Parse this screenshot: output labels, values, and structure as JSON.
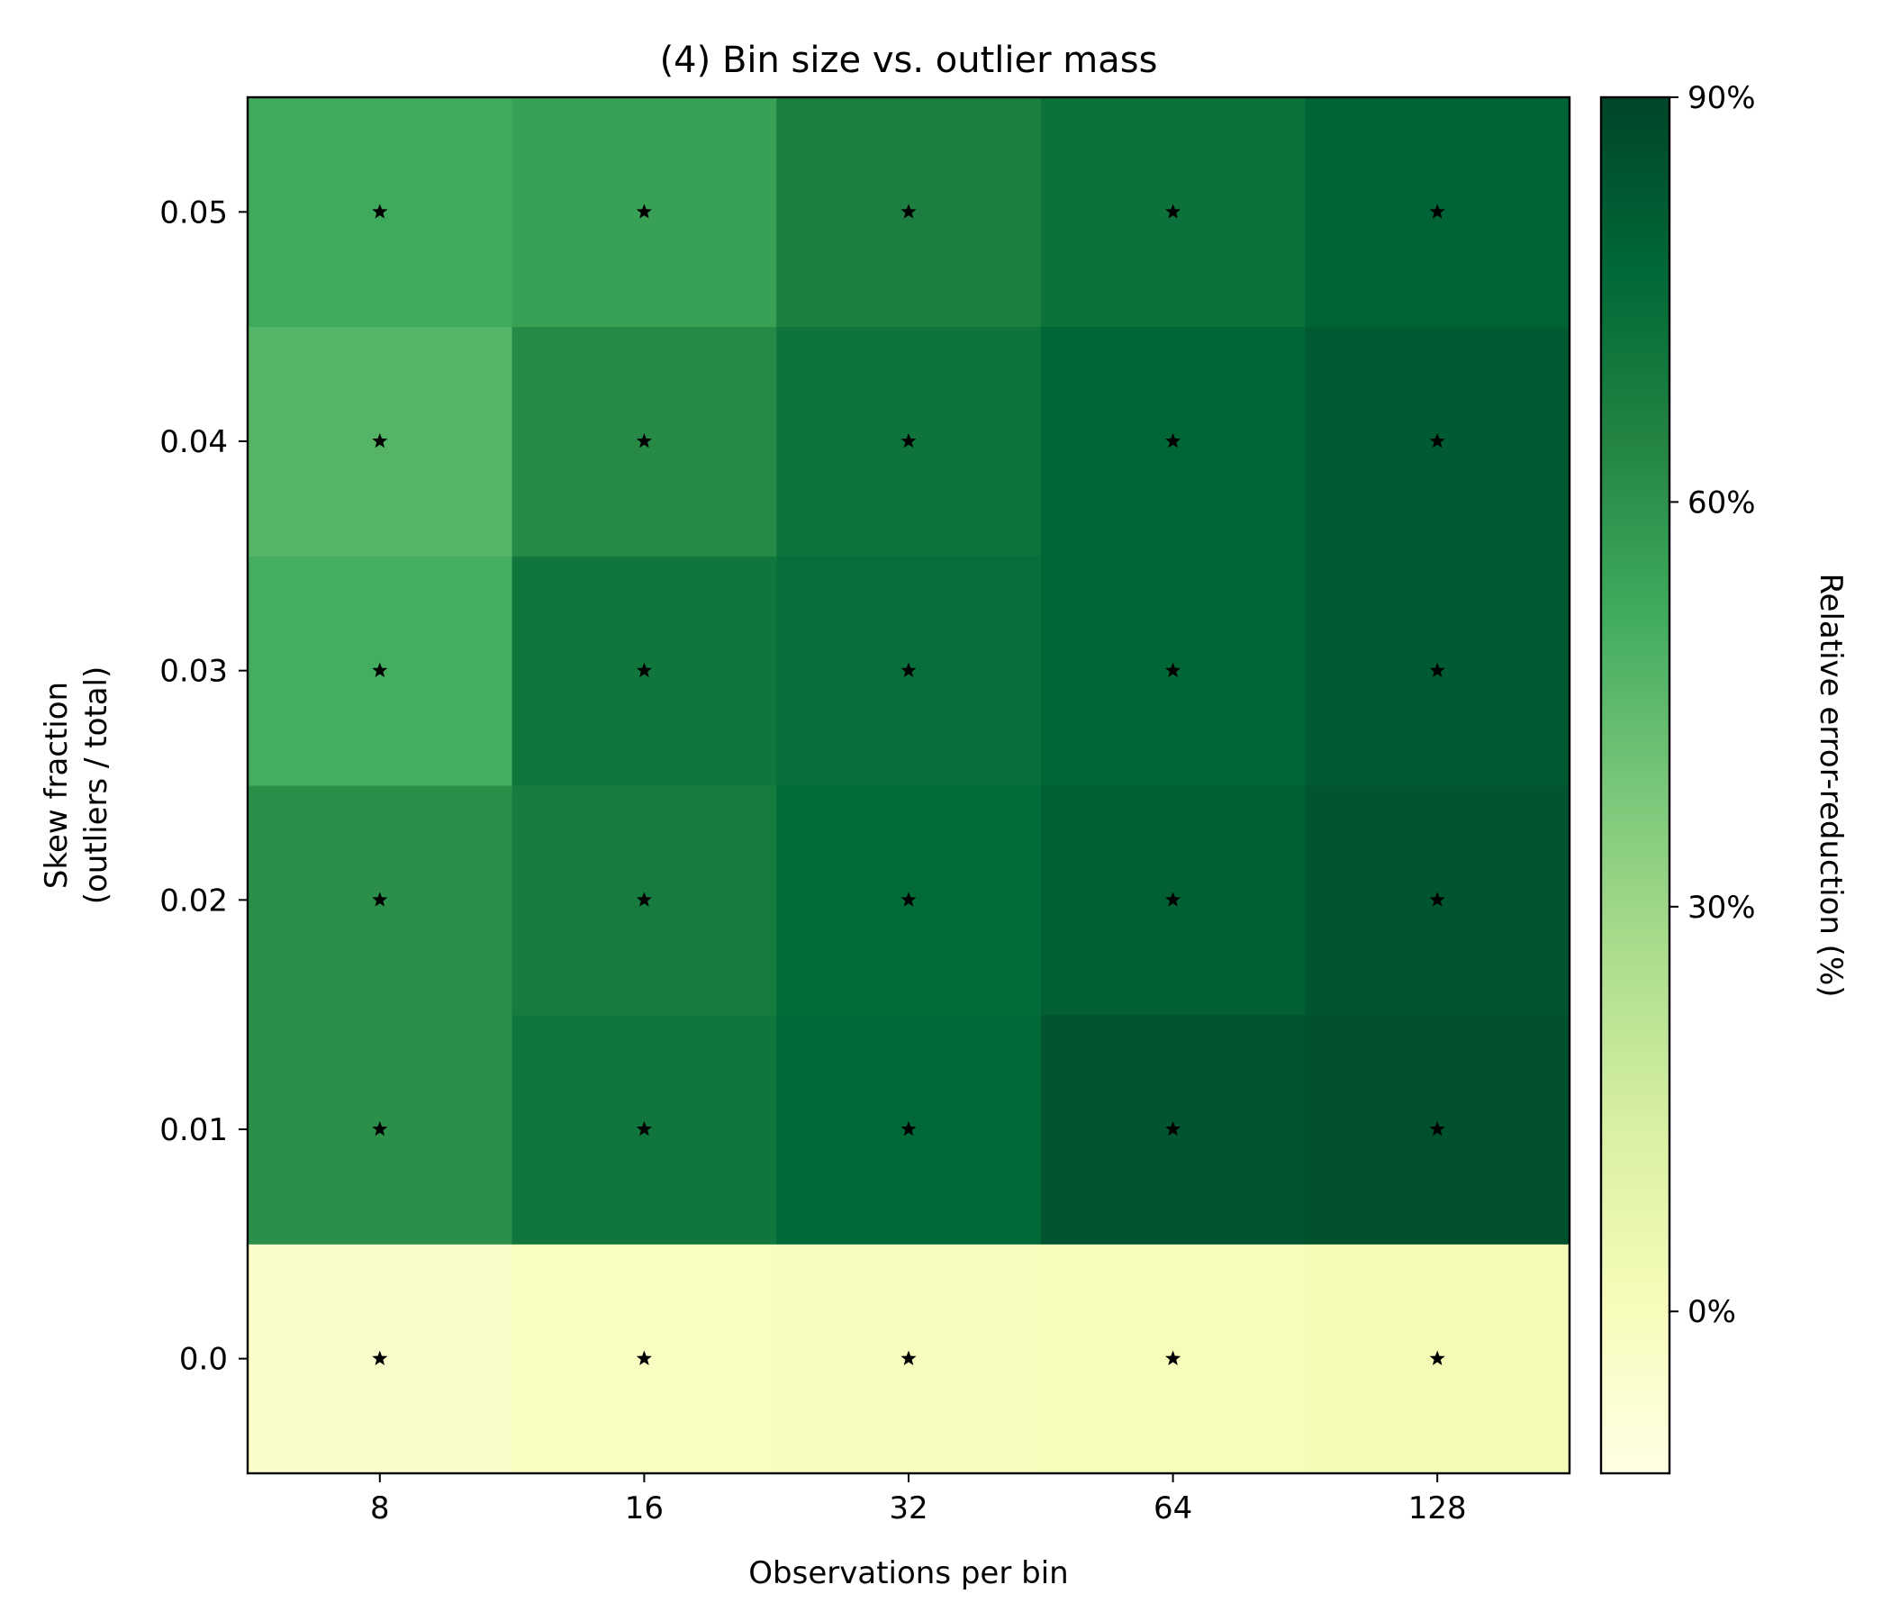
{
  "chart_data": {
    "type": "heatmap",
    "title": "(4)  Bin size vs. outlier mass",
    "xlabel": "Observations per bin",
    "ylabel": [
      "Skew fraction",
      "(outliers / total)"
    ],
    "x_categories": [
      "8",
      "16",
      "32",
      "64",
      "128"
    ],
    "y_categories": [
      "0.0",
      "0.01",
      "0.02",
      "0.03",
      "0.04",
      "0.05"
    ],
    "values": [
      [
        -4,
        -2,
        -1,
        1,
        2
      ],
      [
        61,
        71,
        77,
        84,
        86
      ],
      [
        61,
        69,
        76,
        80,
        84
      ],
      [
        51,
        71,
        74,
        78,
        82
      ],
      [
        47,
        63,
        72,
        78,
        82
      ],
      [
        52,
        55,
        67,
        73,
        79
      ]
    ],
    "marker": "star",
    "colorbar": {
      "label": "Relative error-reduction (%)",
      "range": [
        -12,
        90
      ],
      "ticks": [
        0,
        30,
        60,
        90
      ],
      "tick_labels": [
        "0%",
        "30%",
        "60%",
        "90%"
      ]
    },
    "colormap": [
      "#ffffe5",
      "#f7fcb9",
      "#d9f0a3",
      "#addd8e",
      "#78c679",
      "#41ab5d",
      "#238443",
      "#006837",
      "#004529"
    ]
  }
}
